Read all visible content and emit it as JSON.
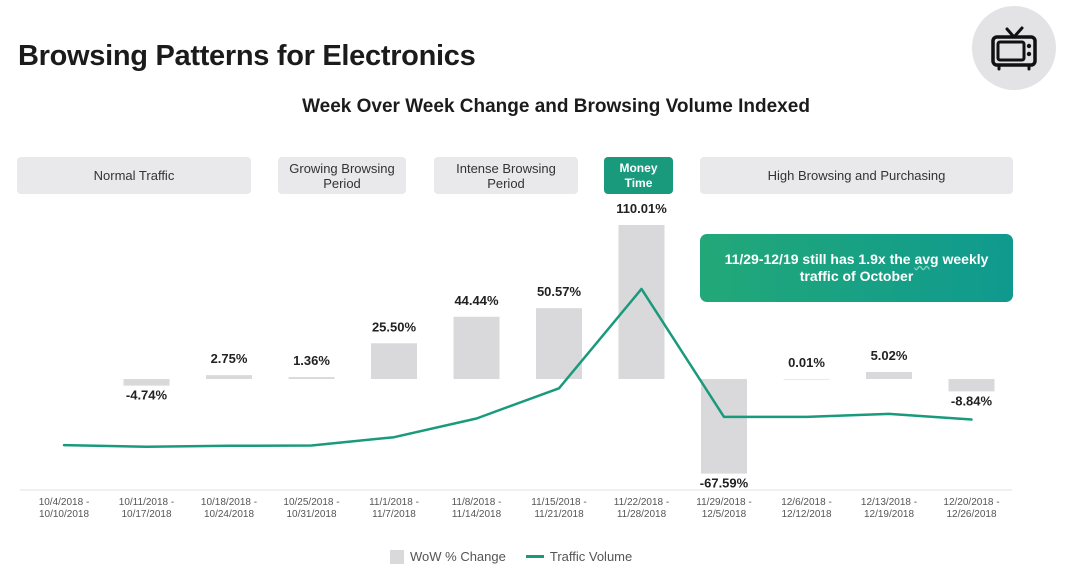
{
  "title": "Browsing Patterns for Electronics",
  "icon": "tv-icon",
  "colors": {
    "accent": "#1a9a7c",
    "bar": "#d9d9db",
    "phase_bg": "#e9e9eb"
  },
  "phases": [
    {
      "label": "Normal Traffic",
      "highlight": false
    },
    {
      "label": "Growing Browsing Period",
      "highlight": false
    },
    {
      "label": "Intense Browsing Period",
      "highlight": false
    },
    {
      "label": "Money Time",
      "highlight": true
    },
    {
      "label": "High Browsing and Purchasing",
      "highlight": false
    }
  ],
  "callout": {
    "prefix": "11/29-12/19 still has 1.9x the ",
    "emphasis": "avg",
    "suffix": " weekly traffic of October"
  },
  "chart_data": {
    "type": "bar",
    "title": "Week Over Week Change and Browsing Volume Indexed",
    "categories": [
      "10/4/2018 - 10/10/2018",
      "10/11/2018 - 10/17/2018",
      "10/18/2018 - 10/24/2018",
      "10/25/2018 - 10/31/2018",
      "11/1/2018 - 11/7/2018",
      "11/8/2018 - 11/14/2018",
      "11/15/2018 - 11/21/2018",
      "11/22/2018 - 11/28/2018",
      "11/29/2018 - 12/5/2018",
      "12/6/2018 - 12/12/2018",
      "12/13/2018 - 12/19/2018",
      "12/20/2018 - 12/26/2018"
    ],
    "series": [
      {
        "name": "WoW % Change",
        "type": "bar",
        "values": [
          null,
          -4.74,
          2.75,
          1.36,
          25.5,
          44.44,
          50.57,
          110.01,
          -67.59,
          0.01,
          5.02,
          -8.84
        ],
        "labels": [
          "",
          "-4.74%",
          "2.75%",
          "1.36%",
          "25.50%",
          "44.44%",
          "50.57%",
          "110.01%",
          "-67.59%",
          "0.01%",
          "5.02%",
          "-8.84%"
        ]
      },
      {
        "name": "Traffic Volume",
        "type": "line",
        "values": [
          100,
          95,
          98,
          99,
          124,
          180,
          271,
          570,
          185,
          185,
          194,
          177
        ]
      }
    ],
    "grid": false,
    "legend_position": "bottom"
  }
}
